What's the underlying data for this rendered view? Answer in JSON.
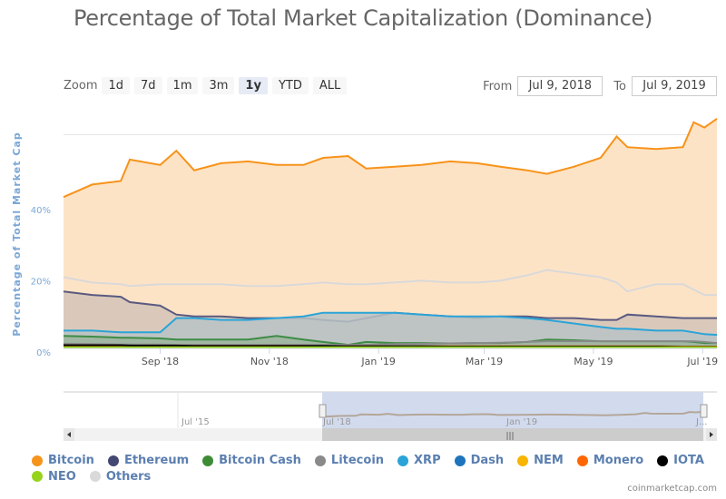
{
  "title": "Percentage of Total Market Capitalization (Dominance)",
  "zoom": {
    "label": "Zoom",
    "buttons": [
      "1d",
      "7d",
      "1m",
      "3m",
      "1y",
      "YTD",
      "ALL"
    ],
    "active": "1y"
  },
  "range": {
    "from_label": "From",
    "from": "Jul 9, 2018",
    "to_label": "To",
    "to": "Jul 9, 2019"
  },
  "credit": "coinmarketcap.com",
  "navigator": {
    "labels": [
      "Jul '15",
      "Jul '18",
      "Jan '19",
      "J..."
    ]
  },
  "chart_data": {
    "type": "area",
    "title": "Percentage of Total Market Capitalization (Dominance)",
    "ylabel": "Percentage of Total Market Cap",
    "xlabel": "",
    "xlim": [
      "2018-07-09",
      "2019-07-09"
    ],
    "ylim": [
      0,
      64.7
    ],
    "yticks": [
      {
        "v": 0,
        "label": "0%"
      },
      {
        "v": 20,
        "label": "20%"
      },
      {
        "v": 40,
        "label": "40%"
      },
      {
        "v": 60,
        "label": ""
      }
    ],
    "xticks": [
      {
        "d": "2018-09-01",
        "label": "Sep '18"
      },
      {
        "d": "2018-11-01",
        "label": "Nov '18"
      },
      {
        "d": "2019-01-01",
        "label": "Jan '19"
      },
      {
        "d": "2019-03-01",
        "label": "Mar '19"
      },
      {
        "d": "2019-05-01",
        "label": "May '19"
      },
      {
        "d": "2019-07-01",
        "label": "Jul '19"
      }
    ],
    "legend_position": "bottom",
    "x": [
      "2018-07-09",
      "2018-07-25",
      "2018-08-10",
      "2018-08-15",
      "2018-09-01",
      "2018-09-10",
      "2018-09-20",
      "2018-10-05",
      "2018-10-20",
      "2018-11-05",
      "2018-11-20",
      "2018-12-01",
      "2018-12-15",
      "2018-12-25",
      "2019-01-10",
      "2019-01-25",
      "2019-02-10",
      "2019-02-25",
      "2019-03-10",
      "2019-03-25",
      "2019-04-05",
      "2019-04-20",
      "2019-05-05",
      "2019-05-14",
      "2019-05-20",
      "2019-06-05",
      "2019-06-20",
      "2019-06-26",
      "2019-07-02",
      "2019-07-09"
    ],
    "series": [
      {
        "name": "Bitcoin",
        "color": "#f7931a",
        "fill": "#fde3c6",
        "values": [
          42.5,
          46,
          47,
          53,
          51.5,
          55.5,
          50,
          52,
          52.5,
          51.5,
          51.5,
          53.5,
          54,
          50.5,
          51,
          51.5,
          52.5,
          52,
          51,
          50,
          49,
          51,
          53.5,
          59.5,
          56.5,
          56,
          56.5,
          63.5,
          62,
          64.5
        ]
      },
      {
        "name": "Others",
        "color": "#d9d9d9",
        "fill": "none",
        "values": [
          20,
          18.5,
          18,
          17.5,
          18,
          18,
          18,
          18,
          17.5,
          17.5,
          18,
          18.5,
          18,
          18,
          18.5,
          19,
          18.5,
          18.5,
          19,
          20.5,
          22,
          21,
          20,
          18.5,
          16,
          18,
          18,
          16.5,
          15,
          15
        ]
      },
      {
        "name": "Ethereum",
        "color": "#5a5a80",
        "fill": "#d3c4b8",
        "values": [
          16,
          15,
          14.5,
          13,
          12,
          9.5,
          9,
          9,
          8.5,
          8.5,
          8.5,
          8,
          7.5,
          8.5,
          10,
          9.5,
          9,
          8.5,
          9,
          9,
          8.5,
          8.5,
          8,
          8,
          9.5,
          9,
          8.5,
          8.5,
          8.5,
          8.5
        ]
      },
      {
        "name": "XRP",
        "color": "#2aa4d8",
        "fill": "#b8c3c6",
        "values": [
          5,
          5,
          4.5,
          4.5,
          4.5,
          8.5,
          8.5,
          8,
          8,
          8.5,
          9,
          10,
          10,
          10,
          10,
          9.5,
          9,
          9,
          9,
          8.5,
          8,
          7,
          6,
          5.5,
          5.5,
          5,
          5,
          4.5,
          4,
          3.8
        ]
      },
      {
        "name": "Bitcoin Cash",
        "color": "#3d8c45",
        "fill": "#9cb59e",
        "values": [
          3.5,
          3.3,
          3,
          3,
          2.8,
          2.5,
          2.5,
          2.5,
          2.5,
          3.5,
          2.5,
          1.8,
          1,
          1.8,
          1.5,
          1.5,
          1.4,
          1.5,
          1.5,
          1.8,
          2.5,
          2.3,
          2,
          2,
          2,
          2,
          2,
          1.8,
          1.5,
          1.5
        ]
      },
      {
        "name": "Litecoin",
        "color": "#8a8a8a",
        "fill": "none",
        "values": [
          1.3,
          1.2,
          1.1,
          1.1,
          1.1,
          1,
          1,
          1,
          1,
          1,
          1,
          1,
          1,
          1,
          1.2,
          1.3,
          1.4,
          1.5,
          1.6,
          1.8,
          2,
          2,
          2,
          2,
          2,
          2,
          2,
          2,
          1.8,
          1.5
        ]
      },
      {
        "name": "Dash",
        "color": "#1c75bc",
        "fill": "none",
        "values": [
          0.8,
          0.8,
          0.8,
          0.8,
          0.7,
          0.7,
          0.7,
          0.7,
          0.7,
          0.7,
          0.7,
          0.6,
          0.6,
          0.6,
          0.6,
          0.6,
          0.6,
          0.6,
          0.6,
          0.6,
          0.6,
          0.6,
          0.6,
          0.6,
          0.6,
          0.6,
          0.5,
          0.5,
          0.5,
          0.5
        ]
      },
      {
        "name": "NEM",
        "color": "#f7b500",
        "fill": "none",
        "values": [
          0.6,
          0.6,
          0.6,
          0.5,
          0.5,
          0.5,
          0.5,
          0.5,
          0.5,
          0.5,
          0.5,
          0.4,
          0.4,
          0.4,
          0.4,
          0.4,
          0.4,
          0.4,
          0.4,
          0.4,
          0.4,
          0.4,
          0.3,
          0.3,
          0.3,
          0.3,
          0.3,
          0.3,
          0.3,
          0.3
        ]
      },
      {
        "name": "Monero",
        "color": "#ff6600",
        "fill": "none",
        "values": [
          0.7,
          0.7,
          0.7,
          0.7,
          0.7,
          0.7,
          0.7,
          0.7,
          0.7,
          0.7,
          0.7,
          0.6,
          0.6,
          0.6,
          0.6,
          0.6,
          0.6,
          0.6,
          0.6,
          0.6,
          0.6,
          0.6,
          0.6,
          0.6,
          0.6,
          0.6,
          0.5,
          0.5,
          0.5,
          0.5
        ]
      },
      {
        "name": "IOTA",
        "color": "#000000",
        "fill": "none",
        "values": [
          0.9,
          0.9,
          0.9,
          0.8,
          0.8,
          0.8,
          0.7,
          0.7,
          0.7,
          0.7,
          0.7,
          0.7,
          0.6,
          0.6,
          0.6,
          0.6,
          0.5,
          0.5,
          0.5,
          0.5,
          0.5,
          0.5,
          0.5,
          0.5,
          0.5,
          0.5,
          0.4,
          0.4,
          0.4,
          0.4
        ]
      },
      {
        "name": "NEO",
        "color": "#97d31c",
        "fill": "none",
        "values": [
          0.3,
          0.3,
          0.3,
          0.3,
          0.3,
          0.3,
          0.3,
          0.3,
          0.3,
          0.3,
          0.3,
          0.3,
          0.3,
          0.3,
          0.3,
          0.3,
          0.3,
          0.3,
          0.3,
          0.3,
          0.3,
          0.3,
          0.3,
          0.3,
          0.3,
          0.3,
          0.3,
          0.3,
          0.3,
          0.3
        ]
      }
    ],
    "legend": [
      "Bitcoin",
      "Ethereum",
      "Bitcoin Cash",
      "Litecoin",
      "XRP",
      "Dash",
      "NEM",
      "Monero",
      "IOTA",
      "NEO",
      "Others"
    ],
    "legend_colors": [
      "#f7931a",
      "#434873",
      "#3d8c35",
      "#8a8a8a",
      "#2aa4d8",
      "#1c75bc",
      "#f7b500",
      "#ff6600",
      "#000000",
      "#97d31c",
      "#d9d9d9"
    ]
  }
}
